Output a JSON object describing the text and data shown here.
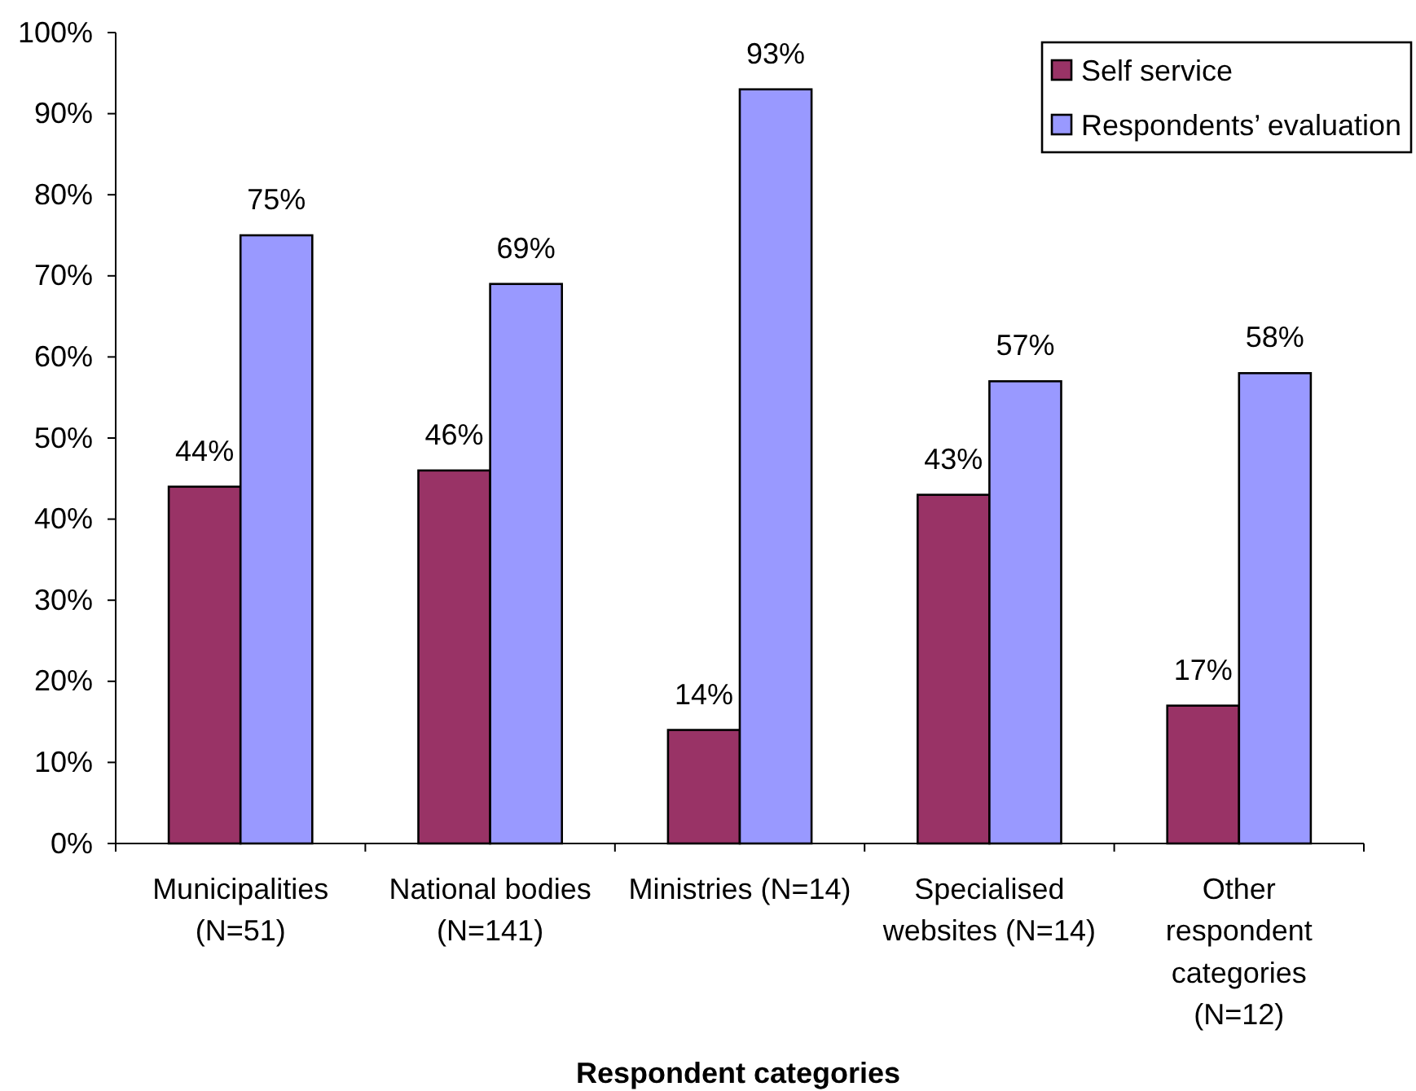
{
  "chart_data": {
    "type": "bar",
    "xlabel": "Respondent categories",
    "categories": [
      "Municipalities (N=51)",
      "National bodies (N=141)",
      "Ministries (N=14)",
      "Specialised websites (N=14)",
      "Other respondent categories (N=12)"
    ],
    "series": [
      {
        "name": "Self service",
        "color": "#993366",
        "values": [
          44,
          46,
          14,
          43,
          17
        ],
        "value_labels": [
          "44%",
          "46%",
          "14%",
          "43%",
          "17%"
        ]
      },
      {
        "name": "Respondents’ evaluation",
        "color": "#9999ff",
        "values": [
          75,
          69,
          93,
          57,
          58
        ],
        "value_labels": [
          "75%",
          "69%",
          "93%",
          "57%",
          "58%"
        ]
      }
    ],
    "ylim": [
      0,
      100
    ],
    "yticks": [
      {
        "value": 0,
        "label": "0%"
      },
      {
        "value": 10,
        "label": "10%"
      },
      {
        "value": 20,
        "label": "20%"
      },
      {
        "value": 30,
        "label": "30%"
      },
      {
        "value": 40,
        "label": "40%"
      },
      {
        "value": 50,
        "label": "50%"
      },
      {
        "value": 60,
        "label": "60%"
      },
      {
        "value": 70,
        "label": "70%"
      },
      {
        "value": 80,
        "label": "80%"
      },
      {
        "value": 90,
        "label": "90%"
      },
      {
        "value": 100,
        "label": "100%"
      }
    ],
    "legend": "top right",
    "grid": false
  }
}
